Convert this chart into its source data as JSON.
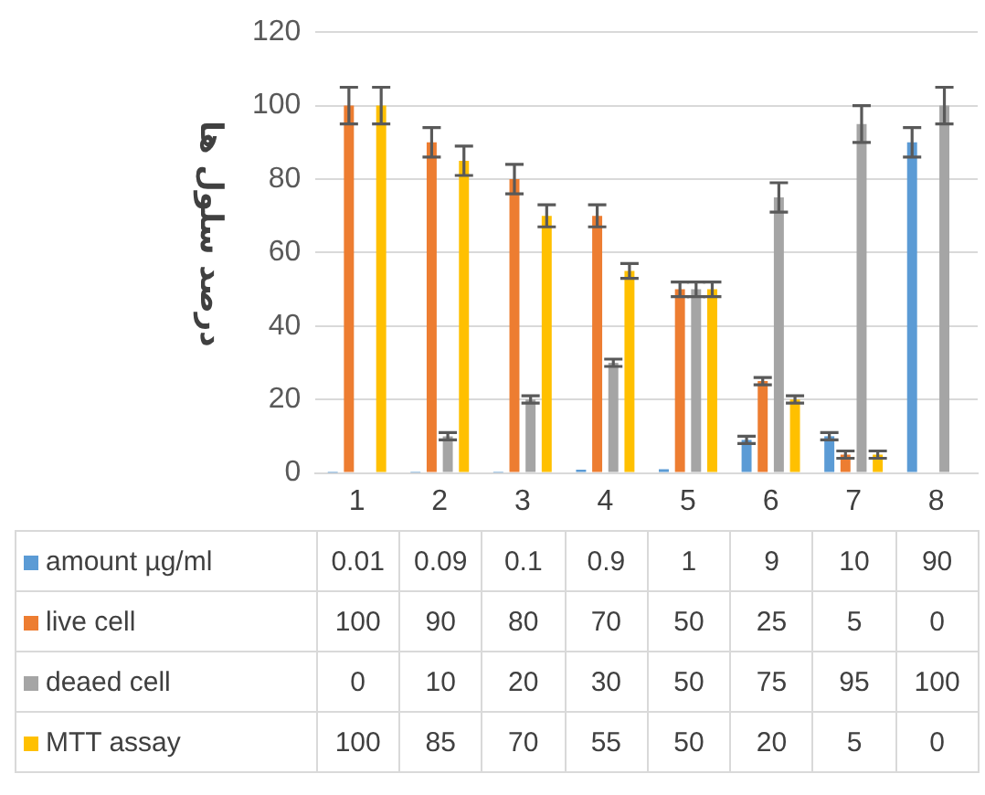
{
  "chart_data": {
    "type": "bar",
    "ylabel": "درصد سلول ها",
    "categories": [
      "1",
      "2",
      "3",
      "4",
      "5",
      "6",
      "7",
      "8"
    ],
    "series": [
      {
        "name": "amount µg/ml",
        "color": "#5b9bd5",
        "values": [
          0.01,
          0.09,
          0.1,
          0.9,
          1,
          9,
          10,
          90
        ],
        "errors": [
          null,
          null,
          null,
          null,
          null,
          1,
          1,
          4
        ]
      },
      {
        "name": "live cell",
        "color": "#ed7d31",
        "values": [
          100,
          90,
          80,
          70,
          50,
          25,
          5,
          0
        ],
        "errors": [
          5,
          4,
          4,
          3,
          2,
          1,
          1,
          null
        ]
      },
      {
        "name": "deaed cell",
        "color": "#a5a5a5",
        "values": [
          0,
          10,
          20,
          30,
          50,
          75,
          95,
          100
        ],
        "errors": [
          null,
          1,
          1,
          1,
          2,
          4,
          5,
          5
        ]
      },
      {
        "name": "MTT assay",
        "color": "#ffc000",
        "values": [
          100,
          85,
          70,
          55,
          50,
          20,
          5,
          0
        ],
        "errors": [
          5,
          4,
          3,
          2,
          2,
          1,
          1,
          null
        ]
      }
    ],
    "ylim": [
      0,
      120
    ],
    "yticks": [
      0,
      20,
      40,
      60,
      80,
      100,
      120
    ],
    "grid": "y",
    "legend": "bottom",
    "data_labels": true
  }
}
